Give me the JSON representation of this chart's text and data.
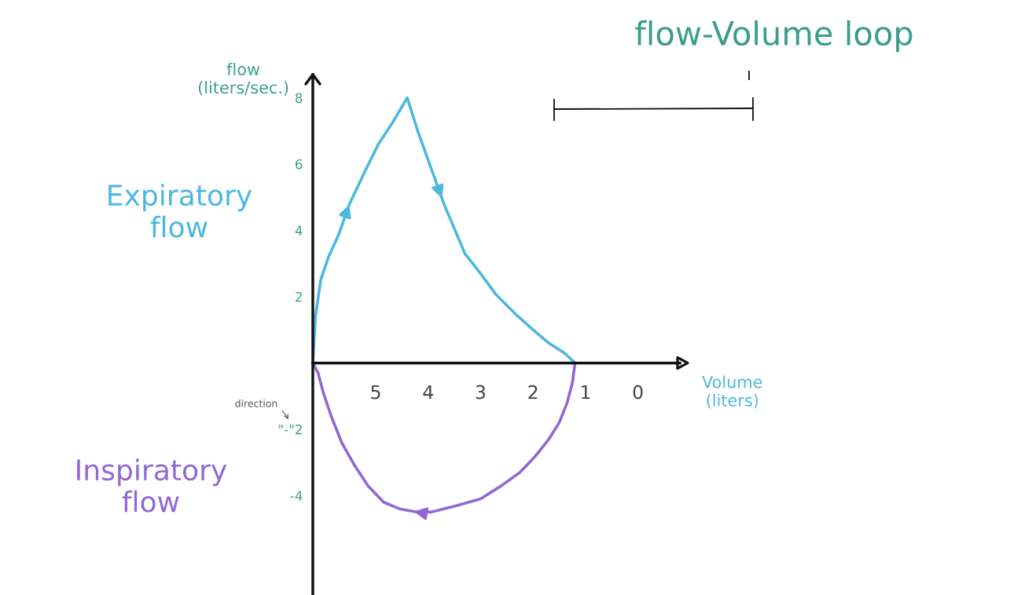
{
  "chart_data": {
    "type": "line",
    "title": "flow-Volume loop",
    "xlabel": "Volume (liters)",
    "ylabel": "flow (liters/sec.)",
    "annotations": [
      "direction"
    ],
    "xlim": [
      6.2,
      -0.8
    ],
    "ylim": [
      -7,
      8.7
    ],
    "xticks": [
      5,
      4,
      3,
      2,
      1,
      0
    ],
    "yticks": [
      -4,
      {
        "value": -2,
        "label": "\"-\"2"
      },
      2,
      4,
      6,
      8
    ],
    "series": [
      {
        "name": "Expiratory flow",
        "color": "#4cb8de",
        "x": [
          6.2,
          6.15,
          6.05,
          5.9,
          5.7,
          5.5,
          5.2,
          4.95,
          4.7,
          4.4,
          4.2,
          3.95,
          3.7,
          3.3,
          3.05,
          2.7,
          2.35,
          2.0,
          1.7,
          1.4,
          1.2
        ],
        "values": [
          0,
          1.4,
          2.5,
          3.2,
          3.9,
          4.8,
          5.8,
          6.6,
          7.2,
          8,
          7,
          5.9,
          4.8,
          3.3,
          2.8,
          2.05,
          1.5,
          1.0,
          0.6,
          0.3,
          0
        ]
      },
      {
        "name": "Inspiratory flow",
        "color": "#9168d4",
        "x": [
          1.2,
          1.25,
          1.35,
          1.5,
          1.7,
          1.95,
          2.25,
          2.6,
          3,
          3.45,
          3.95,
          4.2,
          4.55,
          4.85,
          5.15,
          5.4,
          5.65,
          5.85,
          6,
          6.1,
          6.2
        ],
        "values": [
          0,
          -0.6,
          -1.2,
          -1.8,
          -2.3,
          -2.8,
          -3.3,
          -3.7,
          -4.1,
          -4.3,
          -4.5,
          -4.5,
          -4.4,
          -4.2,
          -3.7,
          -3.1,
          -2.4,
          -1.6,
          -0.9,
          -0.3,
          0
        ]
      }
    ]
  }
}
